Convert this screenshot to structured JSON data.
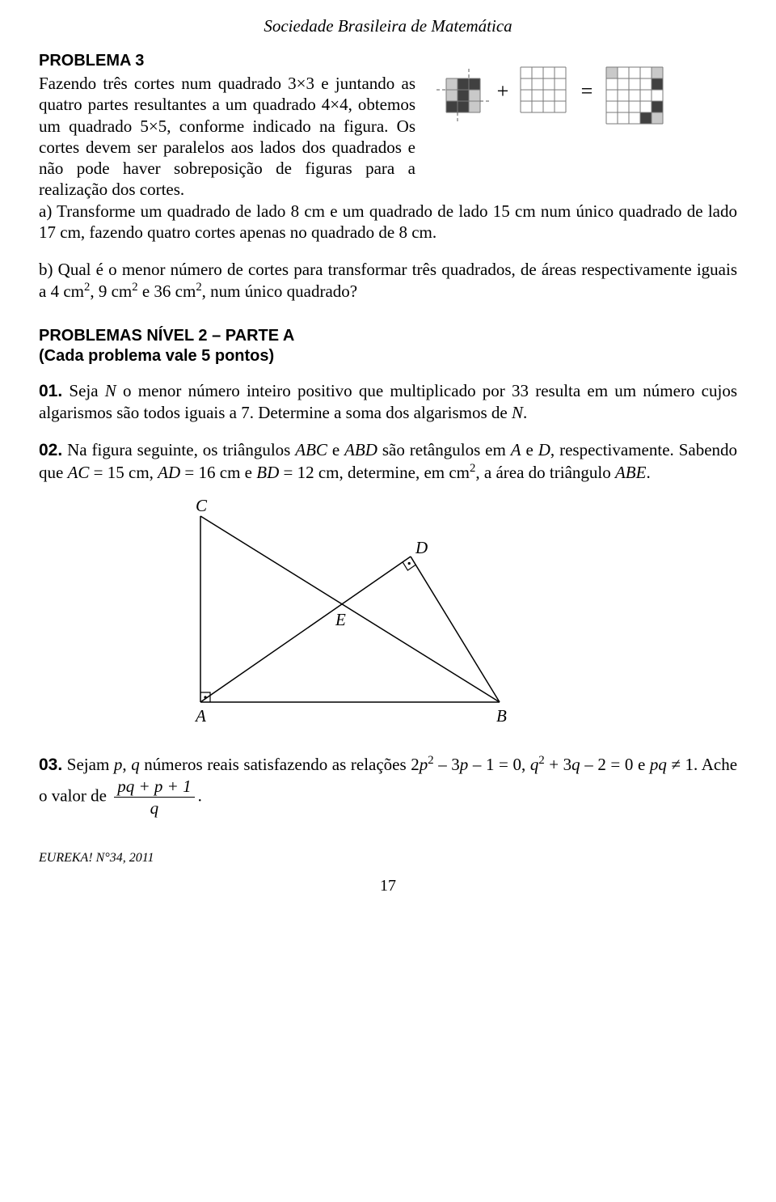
{
  "header": "Sociedade Brasileira de Matemática",
  "problema3": {
    "title": "PROBLEMA 3",
    "intro": "Fazendo três cortes num quadrado 3×3 e juntando as quatro partes resultantes a um quadrado 4×4, obtemos um quadrado 5×5, conforme indicado na figura. Os cortes devem ser paralelos aos lados dos quadrados e não pode haver sobreposição de figuras para a realização dos cortes.",
    "part_a": "a) Transforme um quadrado de lado 8 cm e um quadrado de lado 15 cm num único quadrado de lado 17 cm, fazendo quatro cortes apenas no quadrado de 8 cm.",
    "part_b_prefix": "b) Qual é o menor número de cortes para transformar três quadrados, de áreas respectivamente iguais a 4 cm",
    "part_b_mid1": ", 9 cm",
    "part_b_mid2": " e 36 cm",
    "part_b_suffix": ", num único quadrado?"
  },
  "sectionA": {
    "head": "PROBLEMAS NÍVEL 2 – PARTE A",
    "sub": "(Cada problema vale 5 pontos)"
  },
  "q01": {
    "num": "01.",
    "t1": " Seja ",
    "N1": "N",
    "t2": " o menor número inteiro positivo que multiplicado por 33 resulta em um número cujos algarismos são todos iguais a 7. Determine a soma dos algarismos de ",
    "N2": "N",
    "t3": "."
  },
  "q02": {
    "num": "02.",
    "t1": " Na figura seguinte, os triângulos ",
    "ABC": "ABC",
    "t2": " e ",
    "ABD": "ABD",
    "t3": " são retângulos em ",
    "A": "A",
    "t4": " e ",
    "D": "D",
    "t5": ", respectivamente. Sabendo que ",
    "AC": "AC",
    "t6": " = 15 cm, ",
    "AD": "AD",
    "t7": " = 16 cm e ",
    "BD": "BD",
    "t8": " = 12 cm, determine, em cm",
    "t9": ", a área do triângulo ",
    "ABE": "ABE",
    "t10": "."
  },
  "q03": {
    "num": "03.",
    "t1": " Sejam ",
    "p": "p",
    "t2": ", ",
    "q": "q",
    "t3": " números reais satisfazendo as relações 2",
    "p2": "p",
    "t4": " – 3",
    "p3": "p",
    "t5": " – 1 = 0, ",
    "q2": "q",
    "t6": " + 3",
    "q3": "q",
    "t7": " – 2 = 0 e ",
    "pq": "pq",
    "t8": " ≠ 1. Ache o valor de ",
    "fracnum": "pq + p + 1",
    "fracden": "q",
    "t9": "."
  },
  "geom": {
    "labels": {
      "A": "A",
      "B": "B",
      "C": "C",
      "D": "D",
      "E": "E"
    },
    "stroke": "#000000",
    "font_size": 21
  },
  "gridfig": {
    "cell": 14,
    "line_color": "#7a7a7a",
    "fill_dark": "#404040",
    "fill_light": "#c9c9c9",
    "dash": "#5a5a5a",
    "plus": "+",
    "eq": "="
  },
  "footer": {
    "ref": "EUREKA! N°34, 2011",
    "page": "17"
  }
}
